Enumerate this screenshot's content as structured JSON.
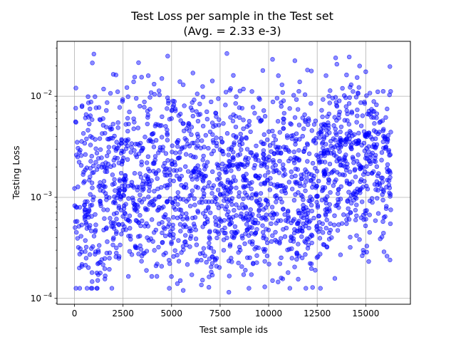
{
  "chart_data": {
    "type": "scatter",
    "title": "Test Loss per sample in the Test set",
    "subtitle": "(Avg. =  2.33 e-3)",
    "xlabel": "Test sample ids",
    "ylabel": "Testing Loss",
    "xlim": [
      -900,
      17300
    ],
    "ylim": [
      8.75e-05,
      0.035
    ],
    "yscale": "log",
    "grid": true,
    "marker_color": "#0000ff",
    "marker_alpha": 0.45,
    "xticks": [
      0,
      2500,
      5000,
      7500,
      10000,
      12500,
      15000
    ],
    "xtick_labels": [
      "0",
      "2500",
      "5000",
      "7500",
      "10000",
      "12500",
      "15000"
    ],
    "yticks": [
      0.0001,
      0.001,
      0.01
    ],
    "ytick_labels": [
      {
        "base": "10",
        "exp": "−4"
      },
      {
        "base": "10",
        "exp": "−3"
      },
      {
        "base": "10",
        "exp": "−2"
      }
    ],
    "n_samples": 2000,
    "x_max_id": 16300,
    "points": [
      [
        1000,
        0.0262
      ],
      [
        7850,
        0.0265
      ],
      [
        14150,
        0.0245
      ],
      [
        13450,
        0.024
      ],
      [
        10200,
        0.0232
      ],
      [
        3300,
        0.0215
      ],
      [
        11350,
        0.0225
      ],
      [
        12000,
        0.0182
      ],
      [
        12200,
        0.0178
      ],
      [
        3100,
        0.0155
      ],
      [
        3800,
        0.016
      ],
      [
        6100,
        0.017
      ],
      [
        15000,
        0.0175
      ],
      [
        14250,
        0.013
      ],
      [
        13800,
        0.012
      ],
      [
        4500,
        0.015
      ],
      [
        7100,
        0.0142
      ],
      [
        8700,
        0.0118
      ],
      [
        9700,
        0.018
      ],
      [
        1500,
        0.0118
      ],
      [
        7800,
        0.011
      ],
      [
        15900,
        0.0112
      ],
      [
        6600,
        0.0125
      ],
      [
        4100,
        0.0132
      ],
      [
        2000,
        0.0165
      ],
      [
        5600,
        0.013
      ],
      [
        2700,
        0.0122
      ],
      [
        11600,
        0.0139
      ],
      [
        600,
        0.0066
      ],
      [
        8300,
        0.0085
      ],
      [
        9500,
        0.0096
      ],
      [
        12800,
        0.0093
      ],
      [
        14600,
        0.0108
      ],
      [
        16100,
        0.0075
      ],
      [
        5200,
        0.0072
      ],
      [
        3600,
        0.0088
      ],
      [
        10800,
        0.0068
      ],
      [
        1300,
        0.0059
      ],
      [
        7300,
        0.0063
      ],
      [
        15300,
        0.0062
      ],
      [
        4800,
        0.025
      ],
      [
        10500,
        0.016
      ],
      [
        13100,
        0.01
      ],
      [
        100,
        0.00045
      ],
      [
        300,
        0.00031
      ],
      [
        200,
        0.00032
      ],
      [
        250,
        0.0002
      ],
      [
        600,
        0.00025
      ],
      [
        1200,
        0.00022
      ],
      [
        1800,
        0.00025
      ],
      [
        2300,
        0.00026
      ],
      [
        3600,
        0.00028
      ],
      [
        4200,
        0.00021
      ],
      [
        5100,
        0.00026
      ],
      [
        5450,
        0.00015
      ],
      [
        5600,
        0.00012
      ],
      [
        5300,
        0.00014
      ],
      [
        7100,
        0.00017
      ],
      [
        7950,
        0.000115
      ],
      [
        8800,
        0.00019
      ],
      [
        9200,
        0.00022
      ],
      [
        9800,
        0.00013
      ],
      [
        10200,
        0.00015
      ],
      [
        11000,
        0.00018
      ],
      [
        11200,
        0.00025
      ],
      [
        12400,
        0.00019
      ],
      [
        13700,
        0.00027
      ],
      [
        16250,
        0.00024
      ],
      [
        14200,
        0.00032
      ],
      [
        15200,
        0.00045
      ],
      [
        6300,
        0.00023
      ],
      [
        8100,
        0.00023
      ]
    ]
  }
}
